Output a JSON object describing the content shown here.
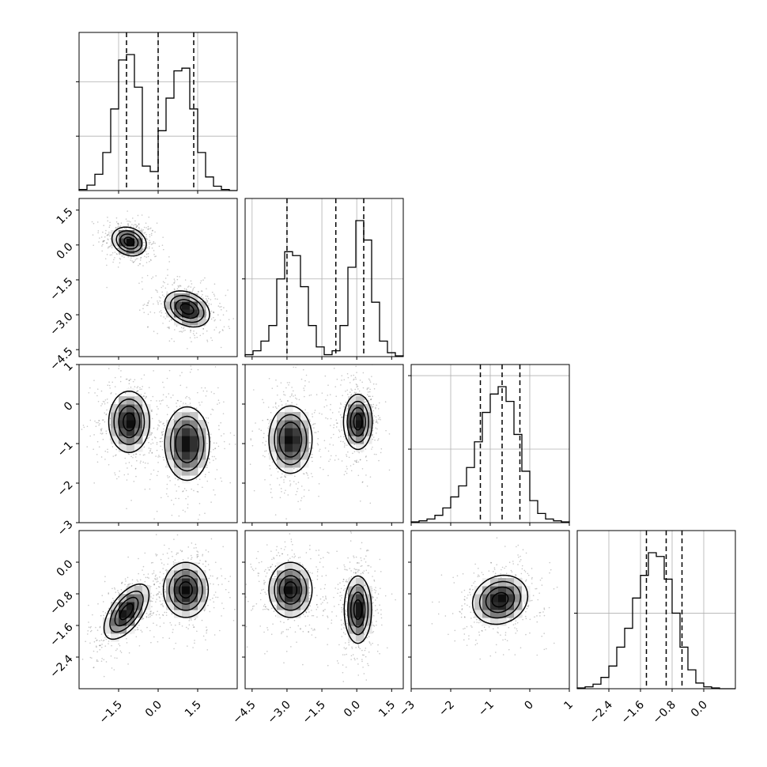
{
  "chart_data": {
    "type": "corner",
    "grid": true,
    "quantiles_shown": [
      0.16,
      0.5,
      0.84
    ],
    "params": [
      {
        "ticks": [
          -1.5,
          0.0,
          1.5
        ],
        "tick_labels": [
          "−1.5",
          "0.0",
          "1.5"
        ],
        "range": [
          -3.0,
          3.0
        ],
        "hist": {
          "edges_start": -3.0,
          "bin_width": 0.3,
          "counts": [
            2,
            10,
            30,
            70,
            150,
            240,
            250,
            190,
            45,
            35,
            110,
            170,
            220,
            225,
            150,
            70,
            25,
            8,
            2,
            0
          ]
        },
        "quantile_values": [
          -1.2,
          0.0,
          1.35
        ]
      },
      {
        "ticks": [
          -4.5,
          -3.0,
          -1.5,
          0.0,
          1.5
        ],
        "tick_labels": [
          "−4.5",
          "−3.0",
          "−1.5",
          "0.0",
          "1.5"
        ],
        "range": [
          -4.8,
          2.0
        ],
        "hist": {
          "edges_start": -4.8,
          "bin_width": 0.34,
          "counts": [
            5,
            15,
            40,
            80,
            200,
            270,
            260,
            180,
            80,
            25,
            5,
            15,
            80,
            230,
            350,
            300,
            140,
            40,
            10,
            2
          ]
        },
        "quantile_values": [
          -3.0,
          -0.9,
          0.3
        ]
      },
      {
        "ticks": [
          -3,
          -2,
          -1,
          0,
          1
        ],
        "tick_labels": [
          "−3",
          "−2",
          "−1",
          "0",
          "1"
        ],
        "range": [
          -3.0,
          1.0
        ],
        "hist": {
          "edges_start": -3.0,
          "bin_width": 0.2,
          "counts": [
            2,
            5,
            10,
            20,
            40,
            70,
            100,
            150,
            220,
            300,
            350,
            370,
            330,
            240,
            140,
            60,
            25,
            10,
            5,
            2
          ]
        },
        "quantile_values": [
          -1.25,
          -0.7,
          -0.25
        ]
      },
      {
        "ticks": [
          -2.4,
          -1.6,
          -0.8,
          0.0
        ],
        "tick_labels": [
          "−2.4",
          "−1.6",
          "−0.8",
          "0.0"
        ],
        "range": [
          -3.2,
          0.8
        ],
        "hist": {
          "edges_start": -3.2,
          "bin_width": 0.2,
          "counts": [
            2,
            5,
            12,
            30,
            60,
            110,
            160,
            240,
            300,
            360,
            350,
            290,
            200,
            110,
            50,
            15,
            5,
            2,
            0,
            0
          ]
        },
        "quantile_values": [
          -1.45,
          -0.95,
          -0.55
        ]
      }
    ],
    "clusters_2d": [
      {
        "ix": 0,
        "iy": 1,
        "blobs": [
          {
            "cx": -1.1,
            "cy": 0.15,
            "sx": 0.42,
            "sy": 0.4,
            "rho": -0.2,
            "levels": 4
          },
          {
            "cx": 1.1,
            "cy": -2.75,
            "sx": 0.55,
            "sy": 0.5,
            "rho": -0.3,
            "levels": 4
          }
        ]
      },
      {
        "ix": 0,
        "iy": 2,
        "blobs": [
          {
            "cx": -1.1,
            "cy": -0.45,
            "sx": 0.5,
            "sy": 0.5,
            "rho": 0.0,
            "levels": 4
          },
          {
            "cx": 1.1,
            "cy": -1.0,
            "sx": 0.55,
            "sy": 0.6,
            "rho": 0.0,
            "levels": 3
          }
        ]
      },
      {
        "ix": 0,
        "iy": 3,
        "blobs": [
          {
            "cx": -1.2,
            "cy": -1.25,
            "sx": 0.55,
            "sy": 0.45,
            "rho": 0.6,
            "levels": 4
          },
          {
            "cx": 1.05,
            "cy": -0.7,
            "sx": 0.55,
            "sy": 0.45,
            "rho": 0.0,
            "levels": 4
          }
        ]
      },
      {
        "ix": 1,
        "iy": 2,
        "blobs": [
          {
            "cx": -2.85,
            "cy": -0.9,
            "sx": 0.6,
            "sy": 0.55,
            "rho": 0.0,
            "levels": 3
          },
          {
            "cx": 0.05,
            "cy": -0.45,
            "sx": 0.4,
            "sy": 0.45,
            "rho": 0.0,
            "levels": 4
          }
        ]
      },
      {
        "ix": 1,
        "iy": 3,
        "blobs": [
          {
            "cx": -2.85,
            "cy": -0.7,
            "sx": 0.6,
            "sy": 0.45,
            "rho": 0.0,
            "levels": 4
          },
          {
            "cx": 0.05,
            "cy": -1.2,
            "sx": 0.38,
            "sy": 0.55,
            "rho": 0.0,
            "levels": 4
          }
        ]
      },
      {
        "ix": 2,
        "iy": 3,
        "blobs": [
          {
            "cx": -0.75,
            "cy": -0.95,
            "sx": 0.45,
            "sy": 0.4,
            "rho": 0.15,
            "levels": 4
          }
        ]
      }
    ]
  }
}
